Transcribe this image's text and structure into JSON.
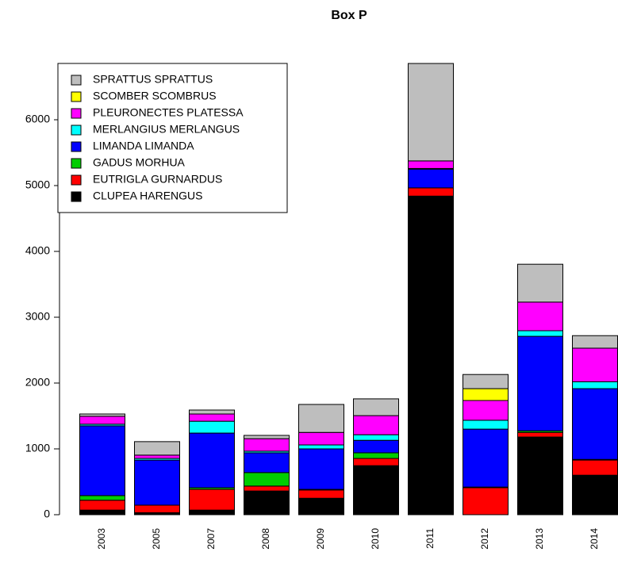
{
  "chart_data": {
    "type": "stacked_bar",
    "title": "Box P",
    "categories": [
      "2003",
      "2005",
      "2007",
      "2008",
      "2009",
      "2010",
      "2011",
      "2012",
      "2013",
      "2014"
    ],
    "series": [
      {
        "name": "CLUPEA HARENGUS",
        "color": "#000000",
        "values": [
          70,
          30,
          70,
          360,
          250,
          745,
          4840,
          0,
          1180,
          600
        ]
      },
      {
        "name": "EUTRIGLA GURNARDUS",
        "color": "#ff0000",
        "values": [
          150,
          115,
          315,
          75,
          125,
          110,
          125,
          410,
          70,
          230
        ]
      },
      {
        "name": "GADUS MORHUA",
        "color": "#00cd00",
        "values": [
          70,
          0,
          25,
          205,
          10,
          85,
          0,
          10,
          25,
          10
        ]
      },
      {
        "name": "LIMANDA LIMANDA",
        "color": "#0000ff",
        "values": [
          1060,
          685,
          830,
          300,
          615,
          190,
          285,
          880,
          1435,
          1075
        ]
      },
      {
        "name": "MERLANGIUS MERLANGUS",
        "color": "#00ffff",
        "values": [
          25,
          25,
          180,
          25,
          60,
          85,
          10,
          135,
          85,
          105
        ]
      },
      {
        "name": "PLEURONECTES PLATESSA",
        "color": "#ff00ff",
        "values": [
          120,
          50,
          110,
          190,
          190,
          290,
          115,
          300,
          435,
          510
        ]
      },
      {
        "name": "SCOMBER SCOMBRUS",
        "color": "#ffff00",
        "values": [
          0,
          0,
          0,
          0,
          0,
          0,
          0,
          180,
          0,
          0
        ]
      },
      {
        "name": "SPRATTUS SPRATTUS",
        "color": "#bebebe",
        "values": [
          35,
          205,
          60,
          50,
          425,
          255,
          1480,
          215,
          575,
          190
        ]
      }
    ],
    "ylim": [
      0,
      7000
    ],
    "yticks": [
      0,
      1000,
      2000,
      3000,
      4000,
      5000,
      6000
    ],
    "legend": "topleft"
  }
}
